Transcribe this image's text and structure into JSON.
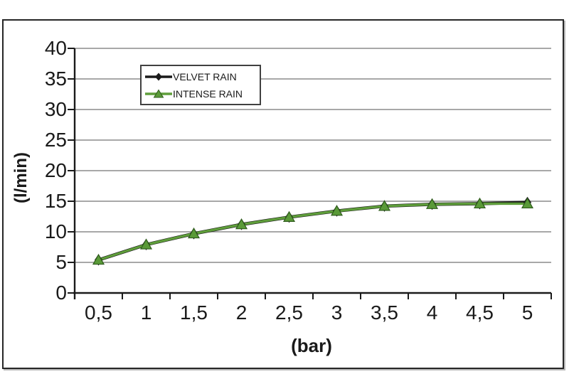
{
  "chart_data": {
    "type": "line",
    "x": [
      0.5,
      1,
      1.5,
      2,
      2.5,
      3,
      3.5,
      4,
      4.5,
      5
    ],
    "x_tick_labels": [
      "0,5",
      "1",
      "1,5",
      "2",
      "2,5",
      "3",
      "3,5",
      "4",
      "4,5",
      "5"
    ],
    "y_ticks": [
      0,
      5,
      10,
      15,
      20,
      25,
      30,
      35,
      40
    ],
    "ylim": [
      0,
      40
    ],
    "xlabel": "(bar)",
    "ylabel": "(l/min)",
    "grid": "horizontal-only",
    "legend_position": "top-left-inside",
    "series": [
      {
        "name": "VELVET RAIN",
        "marker": "diamond",
        "color": "#1a1a1a",
        "values": [
          5.4,
          7.9,
          9.7,
          11.2,
          12.4,
          13.4,
          14.2,
          14.5,
          14.6,
          14.8
        ]
      },
      {
        "name": "INTENSE RAIN",
        "marker": "triangle",
        "color": "#5f9e3b",
        "marker_fill": "#5a9a38",
        "marker_edge": "#2f5c1c",
        "values": [
          5.4,
          7.9,
          9.7,
          11.2,
          12.4,
          13.4,
          14.2,
          14.5,
          14.6,
          14.6
        ]
      }
    ]
  },
  "style_colors": {
    "gridline": "#8c8c8c",
    "axis": "#1a1a1a",
    "frame_border": "#262626",
    "background": "#ffffff"
  }
}
